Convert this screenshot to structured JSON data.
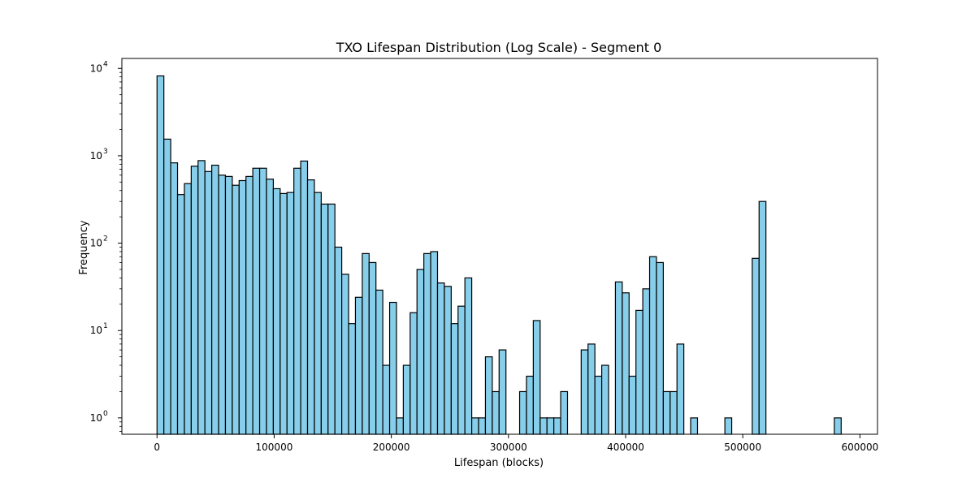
{
  "chart_data": {
    "type": "bar",
    "title": "TXO Lifespan Distribution (Log Scale) - Segment 0",
    "xlabel": "Lifespan (blocks)",
    "ylabel": "Frequency",
    "yscale": "log",
    "xlim": [
      -30000,
      615000
    ],
    "ylim": [
      0.65,
      13000
    ],
    "grid": false,
    "bar_color": "#87ceeb",
    "edge_color": "#000000",
    "bin_start": 0,
    "bin_width": 5840,
    "x_ticks": [
      0,
      100000,
      200000,
      300000,
      400000,
      500000,
      600000
    ],
    "x_tick_labels": [
      "0",
      "100000",
      "200000",
      "300000",
      "400000",
      "500000",
      "600000"
    ],
    "y_ticks": [
      1,
      10,
      100,
      1000,
      10000
    ],
    "y_tick_labels": [
      {
        "base": "10",
        "exp": "0"
      },
      {
        "base": "10",
        "exp": "1"
      },
      {
        "base": "10",
        "exp": "2"
      },
      {
        "base": "10",
        "exp": "3"
      },
      {
        "base": "10",
        "exp": "4"
      }
    ],
    "values": [
      8200,
      1550,
      830,
      360,
      480,
      760,
      880,
      660,
      780,
      600,
      580,
      460,
      520,
      580,
      720,
      720,
      540,
      420,
      370,
      380,
      720,
      870,
      530,
      380,
      280,
      280,
      90,
      44,
      12,
      24,
      76,
      60,
      29,
      4,
      21,
      1,
      4,
      16,
      50,
      76,
      80,
      35,
      32,
      12,
      19,
      40,
      1,
      1,
      5,
      2,
      6,
      0,
      0,
      2,
      3,
      13,
      1,
      1,
      1,
      2,
      0,
      0,
      6,
      7,
      3,
      4,
      0,
      36,
      27,
      3,
      17,
      30,
      70,
      60,
      2,
      2,
      7,
      0,
      1,
      0,
      0,
      0,
      0,
      1,
      0,
      0,
      0,
      67,
      300,
      0,
      0,
      0,
      0,
      0,
      0,
      0,
      0,
      0,
      0,
      1
    ]
  }
}
